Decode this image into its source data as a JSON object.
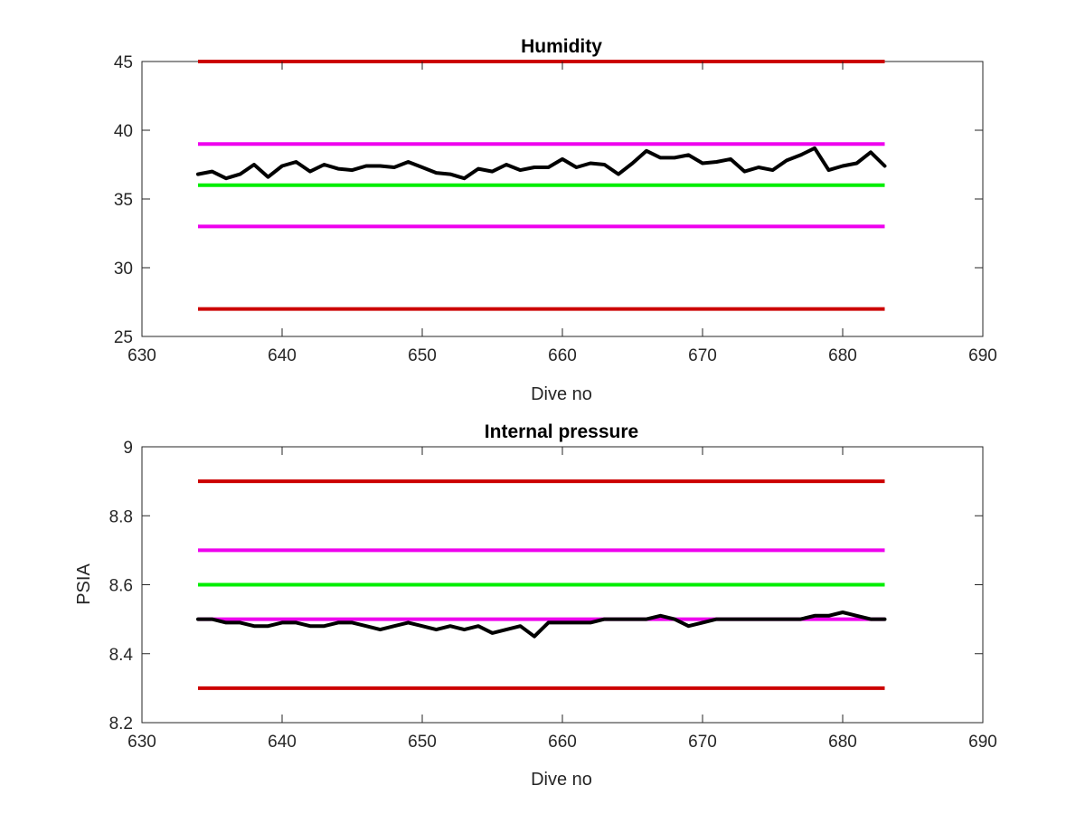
{
  "chart_data": [
    {
      "type": "line",
      "title": "Humidity",
      "xlabel": "Dive no",
      "ylabel": "",
      "xlim": [
        630,
        690
      ],
      "ylim": [
        25,
        45
      ],
      "xticks": [
        "630",
        "640",
        "650",
        "660",
        "670",
        "680",
        "690"
      ],
      "yticks": [
        "25",
        "30",
        "35",
        "40",
        "45"
      ],
      "x": [
        634,
        635,
        636,
        637,
        638,
        639,
        640,
        641,
        642,
        643,
        644,
        645,
        646,
        647,
        648,
        649,
        650,
        651,
        652,
        653,
        654,
        655,
        656,
        657,
        658,
        659,
        660,
        661,
        662,
        663,
        664,
        665,
        666,
        667,
        668,
        669,
        670,
        671,
        672,
        673,
        674,
        675,
        676,
        677,
        678,
        679,
        680,
        681,
        682,
        683
      ],
      "series": [
        {
          "color": "#000000",
          "values": [
            36.8,
            37.0,
            36.5,
            36.8,
            37.5,
            36.6,
            37.4,
            37.7,
            37.0,
            37.5,
            37.2,
            37.1,
            37.4,
            37.4,
            37.3,
            37.7,
            37.3,
            36.9,
            36.8,
            36.5,
            37.2,
            37.0,
            37.5,
            37.1,
            37.3,
            37.3,
            37.9,
            37.3,
            37.6,
            37.5,
            36.8,
            37.6,
            38.5,
            38.0,
            38.0,
            38.2,
            37.6,
            37.7,
            37.9,
            37.0,
            37.3,
            37.1,
            37.8,
            38.2,
            38.7,
            37.1,
            37.4,
            37.6,
            38.4,
            37.4
          ]
        }
      ],
      "reference_lines": [
        {
          "y": 45,
          "color": "#cc0000",
          "x_range": [
            634,
            683
          ]
        },
        {
          "y": 39,
          "color": "#ee00ee",
          "x_range": [
            634,
            683
          ]
        },
        {
          "y": 36,
          "color": "#00ee00",
          "x_range": [
            634,
            683
          ]
        },
        {
          "y": 33,
          "color": "#ee00ee",
          "x_range": [
            634,
            683
          ]
        },
        {
          "y": 27,
          "color": "#cc0000",
          "x_range": [
            634,
            683
          ]
        }
      ],
      "grid": false,
      "legend": "none"
    },
    {
      "type": "line",
      "title": "Internal pressure",
      "xlabel": "Dive no",
      "ylabel": "PSIA",
      "xlim": [
        630,
        690
      ],
      "ylim": [
        8.2,
        9
      ],
      "xticks": [
        "630",
        "640",
        "650",
        "660",
        "670",
        "680",
        "690"
      ],
      "yticks": [
        "8.2",
        "8.4",
        "8.6",
        "8.8",
        "9"
      ],
      "x": [
        634,
        635,
        636,
        637,
        638,
        639,
        640,
        641,
        642,
        643,
        644,
        645,
        646,
        647,
        648,
        649,
        650,
        651,
        652,
        653,
        654,
        655,
        656,
        657,
        658,
        659,
        660,
        661,
        662,
        663,
        664,
        665,
        666,
        667,
        668,
        669,
        670,
        671,
        672,
        673,
        674,
        675,
        676,
        677,
        678,
        679,
        680,
        681,
        682,
        683
      ],
      "series": [
        {
          "color": "#000000",
          "values": [
            8.5,
            8.5,
            8.49,
            8.49,
            8.48,
            8.48,
            8.49,
            8.49,
            8.48,
            8.48,
            8.49,
            8.49,
            8.48,
            8.47,
            8.48,
            8.49,
            8.48,
            8.47,
            8.48,
            8.47,
            8.48,
            8.46,
            8.47,
            8.48,
            8.45,
            8.49,
            8.49,
            8.49,
            8.49,
            8.5,
            8.5,
            8.5,
            8.5,
            8.51,
            8.5,
            8.48,
            8.49,
            8.5,
            8.5,
            8.5,
            8.5,
            8.5,
            8.5,
            8.5,
            8.51,
            8.51,
            8.52,
            8.51,
            8.5,
            8.5
          ]
        }
      ],
      "reference_lines": [
        {
          "y": 8.9,
          "color": "#cc0000",
          "x_range": [
            634,
            683
          ]
        },
        {
          "y": 8.7,
          "color": "#ee00ee",
          "x_range": [
            634,
            683
          ]
        },
        {
          "y": 8.6,
          "color": "#00ee00",
          "x_range": [
            634,
            683
          ]
        },
        {
          "y": 8.5,
          "color": "#ee00ee",
          "x_range": [
            634,
            683
          ]
        },
        {
          "y": 8.3,
          "color": "#cc0000",
          "x_range": [
            634,
            683
          ]
        }
      ],
      "grid": false,
      "legend": "none"
    }
  ]
}
